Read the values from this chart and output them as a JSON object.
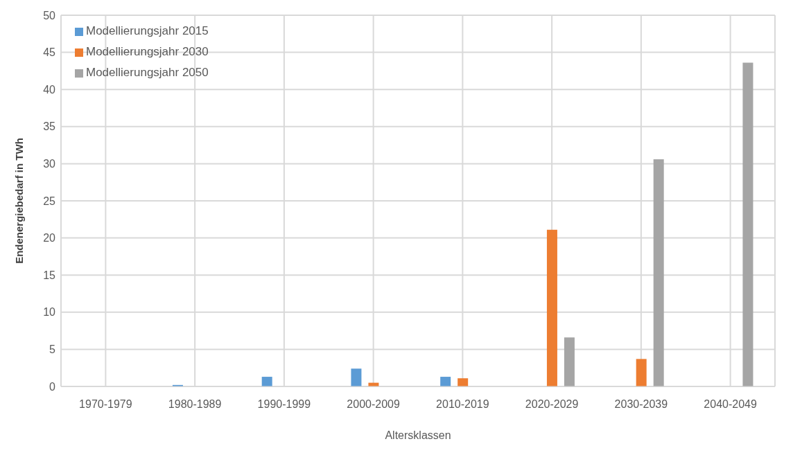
{
  "chart_data": {
    "type": "bar",
    "xlabel": "Altersklassen",
    "ylabel": "Endenergiebedarf in TWh",
    "categories": [
      "1970-1979",
      "1980-1989",
      "1990-1999",
      "2000-2009",
      "2010-2019",
      "2020-2029",
      "2030-2039",
      "2040-2049"
    ],
    "series": [
      {
        "name": "Modellierungsjahr 2015",
        "color": "#5b9bd5",
        "values": [
          0,
          0.2,
          1.3,
          2.4,
          1.3,
          0,
          0,
          0
        ]
      },
      {
        "name": "Modellierungsjahr 2030",
        "color": "#ed7d31",
        "values": [
          0,
          0,
          0,
          0.5,
          1.1,
          21.1,
          3.7,
          0
        ]
      },
      {
        "name": "Modellierungsjahr 2050",
        "color": "#a5a5a5",
        "values": [
          0,
          0,
          0,
          0,
          0,
          6.6,
          30.6,
          43.6
        ]
      }
    ],
    "ylim": [
      0,
      50
    ],
    "yticks": [
      0,
      5,
      10,
      15,
      20,
      25,
      30,
      35,
      40,
      45,
      50
    ],
    "grid": true,
    "legend": "top left"
  }
}
